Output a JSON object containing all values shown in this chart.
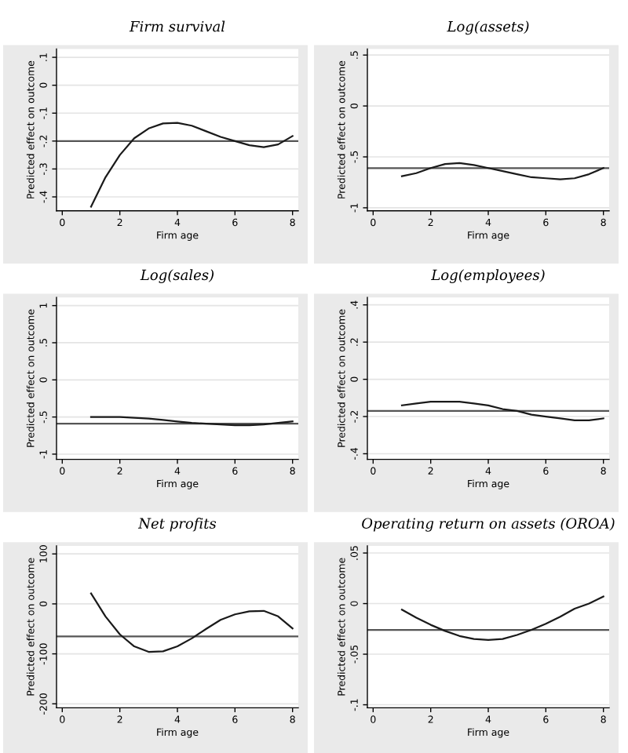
{
  "chart_data": [
    {
      "type": "line",
      "title": "Firm survival",
      "xlabel": "Firm age",
      "ylabel": "Predicted effect on outcome",
      "grid": "y",
      "line_style": "solid",
      "x": [
        1,
        1.5,
        2,
        2.5,
        3,
        3.5,
        4,
        4.5,
        5,
        5.5,
        6,
        6.5,
        7,
        7.5,
        8
      ],
      "series": [
        {
          "color": "#1a1a1a",
          "values": [
            -0.435,
            -0.33,
            -0.25,
            -0.19,
            -0.155,
            -0.137,
            -0.135,
            -0.145,
            -0.165,
            -0.185,
            -0.2,
            -0.215,
            -0.222,
            -0.212,
            -0.182
          ]
        }
      ],
      "ref_lines": [
        {
          "axis": "y",
          "value": -0.2,
          "color": "#555555"
        }
      ],
      "xlim": [
        -0.2,
        8.2
      ],
      "xticks": [
        0,
        2,
        4,
        6,
        8
      ],
      "ylim": [
        -0.45,
        0.13
      ],
      "yticks": [
        {
          "value": 0.1,
          "label": ".1"
        },
        0,
        {
          "value": -0.1,
          "label": "-.1"
        },
        {
          "value": -0.2,
          "label": "-.2"
        },
        {
          "value": -0.3,
          "label": "-.3"
        },
        {
          "value": -0.4,
          "label": "-.4"
        }
      ]
    },
    {
      "type": "line",
      "title": "Log(assets)",
      "xlabel": "Firm age",
      "ylabel": "Predicted effect on outcome",
      "grid": "y",
      "line_style": "solid",
      "x": [
        1,
        1.5,
        2,
        2.5,
        3,
        3.5,
        4,
        4.5,
        5,
        5.5,
        6,
        6.5,
        7,
        7.5,
        8
      ],
      "series": [
        {
          "color": "#1a1a1a",
          "values": [
            -0.69,
            -0.66,
            -0.61,
            -0.57,
            -0.56,
            -0.58,
            -0.61,
            -0.64,
            -0.67,
            -0.7,
            -0.71,
            -0.72,
            -0.71,
            -0.67,
            -0.61
          ]
        }
      ],
      "ref_lines": [
        {
          "axis": "y",
          "value": -0.61,
          "color": "#555555"
        }
      ],
      "xlim": [
        -0.2,
        8.2
      ],
      "xticks": [
        0,
        2,
        4,
        6,
        8
      ],
      "ylim": [
        -1.03,
        0.56
      ],
      "yticks": [
        {
          "value": 0.5,
          "label": ".5"
        },
        0,
        {
          "value": -0.5,
          "label": "-.5"
        },
        -1
      ]
    },
    {
      "type": "line",
      "title": "Log(sales)",
      "xlabel": "Firm age",
      "ylabel": "Predicted effect on outcome",
      "grid": "y",
      "line_style": "solid",
      "x": [
        1,
        1.5,
        2,
        2.5,
        3,
        3.5,
        4,
        4.5,
        5,
        5.5,
        6,
        6.5,
        7,
        7.5,
        8
      ],
      "series": [
        {
          "color": "#1a1a1a",
          "values": [
            -0.5,
            -0.5,
            -0.5,
            -0.51,
            -0.52,
            -0.54,
            -0.56,
            -0.58,
            -0.59,
            -0.6,
            -0.61,
            -0.61,
            -0.6,
            -0.58,
            -0.56
          ]
        }
      ],
      "ref_lines": [
        {
          "axis": "y",
          "value": -0.59,
          "color": "#555555"
        }
      ],
      "xlim": [
        -0.2,
        8.2
      ],
      "xticks": [
        0,
        2,
        4,
        6,
        8
      ],
      "ylim": [
        -1.07,
        1.11
      ],
      "yticks": [
        1,
        {
          "value": 0.5,
          "label": ".5"
        },
        0,
        {
          "value": -0.5,
          "label": "-.5"
        },
        -1
      ]
    },
    {
      "type": "line",
      "title": "Log(employees)",
      "xlabel": "Firm age",
      "ylabel": "Predicted effect on outcome",
      "grid": "y",
      "line_style": "solid",
      "x": [
        1,
        1.5,
        2,
        2.5,
        3,
        3.5,
        4,
        4.5,
        5,
        5.5,
        6,
        6.5,
        7,
        7.5,
        8
      ],
      "series": [
        {
          "color": "#1a1a1a",
          "values": [
            -0.14,
            -0.13,
            -0.12,
            -0.12,
            -0.12,
            -0.13,
            -0.14,
            -0.16,
            -0.17,
            -0.19,
            -0.2,
            -0.21,
            -0.22,
            -0.22,
            -0.21
          ]
        }
      ],
      "ref_lines": [
        {
          "axis": "y",
          "value": -0.17,
          "color": "#555555"
        }
      ],
      "xlim": [
        -0.2,
        8.2
      ],
      "xticks": [
        0,
        2,
        4,
        6,
        8
      ],
      "ylim": [
        -0.43,
        0.44
      ],
      "yticks": [
        {
          "value": 0.4,
          "label": ".4"
        },
        {
          "value": 0.2,
          "label": ".2"
        },
        0,
        {
          "value": -0.2,
          "label": "-.2"
        },
        {
          "value": -0.4,
          "label": "-.4"
        }
      ]
    },
    {
      "type": "line",
      "title": "Net profits",
      "xlabel": "Firm age",
      "ylabel": "Predicted effect on outcome",
      "grid": "y",
      "line_style": "solid",
      "x": [
        1,
        1.5,
        2,
        2.5,
        3,
        3.5,
        4,
        4.5,
        5,
        5.5,
        6,
        6.5,
        7,
        7.5,
        8
      ],
      "series": [
        {
          "color": "#1a1a1a",
          "values": [
            21,
            -25,
            -61,
            -85,
            -96,
            -95,
            -85,
            -69,
            -50,
            -32,
            -21,
            -15,
            -14,
            -25,
            -49
          ]
        }
      ],
      "ref_lines": [
        {
          "axis": "y",
          "value": -65,
          "color": "#555555"
        }
      ],
      "xlim": [
        -0.2,
        8.2
      ],
      "xticks": [
        0,
        2,
        4,
        6,
        8
      ],
      "ylim": [
        -208,
        116
      ],
      "yticks": [
        100,
        0,
        -100,
        -200
      ]
    },
    {
      "type": "line",
      "title": "Operating return on assets (OROA)",
      "xlabel": "Firm age",
      "ylabel": "Predicted effect on outcome",
      "grid": "y",
      "line_style": "solid",
      "x": [
        1,
        1.5,
        2,
        2.5,
        3,
        3.5,
        4,
        4.5,
        5,
        5.5,
        6,
        6.5,
        7,
        7.5,
        8
      ],
      "series": [
        {
          "color": "#1a1a1a",
          "values": [
            -0.006,
            -0.014,
            -0.021,
            -0.027,
            -0.032,
            -0.035,
            -0.036,
            -0.035,
            -0.031,
            -0.026,
            -0.02,
            -0.013,
            -0.005,
            0.0,
            0.007
          ]
        }
      ],
      "ref_lines": [
        {
          "axis": "y",
          "value": -0.026,
          "color": "#555555"
        }
      ],
      "xlim": [
        -0.2,
        8.2
      ],
      "xticks": [
        0,
        2,
        4,
        6,
        8
      ],
      "ylim": [
        -0.103,
        0.057
      ],
      "yticks": [
        {
          "value": 0.05,
          "label": ".05"
        },
        0,
        {
          "value": -0.05,
          "label": "-.05"
        },
        {
          "value": -0.1,
          "label": "-.1"
        }
      ]
    }
  ]
}
